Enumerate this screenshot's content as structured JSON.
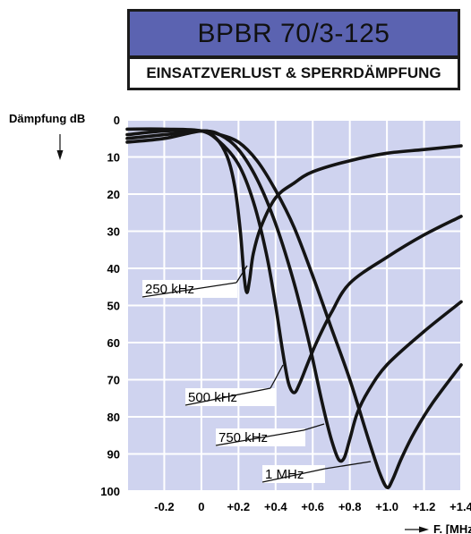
{
  "title": "BPBR 70/3-125",
  "subtitle": "EINSATZVERLUST & SPERRDÄMPFUNG",
  "colors": {
    "title_bg": "#5b63b1",
    "grid_bg": "#cfd3ef",
    "grid_line": "#ffffff",
    "curve": "#141414"
  },
  "chart_data": {
    "type": "line",
    "title": "BPBR 70/3-125",
    "subtitle": "EINSATZVERLUST & SPERRDÄMPFUNG",
    "ylabel": "Dämpfung dB",
    "xlabel": "F. [MHz]",
    "xlim": [
      -0.4,
      1.4
    ],
    "ylim": [
      0,
      100
    ],
    "y_inverted": true,
    "x_ticks": [
      "-0.2",
      "0",
      "+0.2",
      "+0.4",
      "+0.6",
      "+0.8",
      "+1.0",
      "+1.2",
      "+1.4"
    ],
    "x_tick_values": [
      -0.2,
      0,
      0.2,
      0.4,
      0.6,
      0.8,
      1.0,
      1.2,
      1.4
    ],
    "y_ticks": [
      "0",
      "10",
      "20",
      "30",
      "40",
      "50",
      "60",
      "70",
      "80",
      "90",
      "100"
    ],
    "y_tick_values": [
      0,
      10,
      20,
      30,
      40,
      50,
      60,
      70,
      80,
      90,
      100
    ],
    "grid": true,
    "series": [
      {
        "name": "250 kHz",
        "x": [
          -0.4,
          -0.2,
          0,
          0.08,
          0.14,
          0.18,
          0.21,
          0.23,
          0.245,
          0.26,
          0.28,
          0.32,
          0.4,
          0.5,
          0.6,
          0.8,
          1.0,
          1.2,
          1.4
        ],
        "y": [
          4,
          3,
          3,
          5,
          10,
          18,
          30,
          42,
          46.5,
          43,
          36,
          29,
          21,
          17,
          14,
          11,
          9,
          8,
          7
        ]
      },
      {
        "name": "500 kHz",
        "x": [
          -0.4,
          -0.2,
          0,
          0.1,
          0.2,
          0.28,
          0.35,
          0.4,
          0.44,
          0.47,
          0.5,
          0.53,
          0.57,
          0.62,
          0.7,
          0.8,
          1.0,
          1.2,
          1.4
        ],
        "y": [
          2.5,
          2.5,
          3,
          6,
          12,
          22,
          36,
          50,
          63,
          71,
          73.5,
          71,
          66,
          60,
          52,
          44,
          37,
          31,
          26
        ]
      },
      {
        "name": "750 kHz",
        "x": [
          -0.4,
          -0.2,
          0,
          0.1,
          0.2,
          0.3,
          0.4,
          0.5,
          0.58,
          0.65,
          0.7,
          0.74,
          0.77,
          0.8,
          0.84,
          0.9,
          1.0,
          1.2,
          1.4
        ],
        "y": [
          5,
          4,
          3,
          4,
          8,
          16,
          28,
          44,
          60,
          76,
          86,
          91.5,
          91,
          86,
          79,
          73,
          66,
          57,
          49
        ]
      },
      {
        "name": "1 MHz",
        "x": [
          -0.4,
          -0.2,
          0,
          0.1,
          0.2,
          0.3,
          0.4,
          0.5,
          0.6,
          0.7,
          0.8,
          0.9,
          0.96,
          1.0,
          1.03,
          1.08,
          1.15,
          1.25,
          1.4
        ],
        "y": [
          6,
          5,
          3,
          4,
          6,
          11,
          19,
          29,
          42,
          56,
          70,
          86,
          95,
          99,
          97,
          91,
          84,
          76,
          66
        ]
      }
    ],
    "annotations": [
      "250 kHz",
      "500 kHz",
      "750 kHz",
      "1 MHz"
    ]
  }
}
